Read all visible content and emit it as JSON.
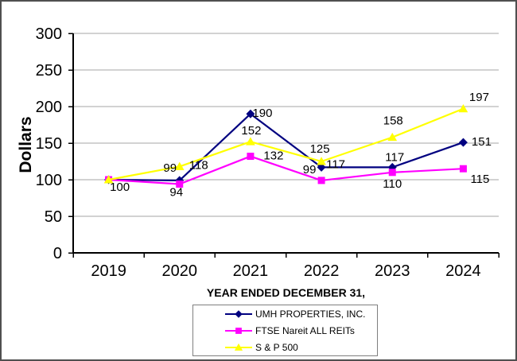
{
  "chart_data": {
    "type": "line",
    "title": "",
    "ylabel": "Dollars",
    "xlabel": "YEAR ENDED DECEMBER 31,",
    "categories": [
      "2019",
      "2020",
      "2021",
      "2022",
      "2023",
      "2024"
    ],
    "yticks": [
      0,
      50,
      100,
      150,
      200,
      250,
      300
    ],
    "ylim": [
      0,
      300
    ],
    "grid": "horizontal",
    "legend_position": "bottom-center",
    "colors": {
      "grid": "#a6a6a6",
      "axis": "#000000",
      "text": "#000000"
    },
    "series": [
      {
        "name": "UMH PROPERTIES, INC.",
        "color": "#000080",
        "marker": "diamond",
        "values": [
          100,
          99,
          190,
          117,
          117,
          151
        ],
        "labels": [
          "100",
          "99",
          "190",
          "117",
          "117",
          "151"
        ],
        "label_offsets": [
          [
            14,
            9
          ],
          [
            -12,
            -16
          ],
          [
            15,
            -1
          ],
          [
            18,
            -4
          ],
          [
            3,
            -13
          ],
          [
            23,
            -1
          ]
        ]
      },
      {
        "name": "FTSE Nareit ALL REITs",
        "color": "#ff00ff",
        "marker": "square",
        "values": [
          100,
          94,
          132,
          99,
          110,
          115
        ],
        "labels": [
          null,
          "94",
          "132",
          "99",
          "110",
          "115"
        ],
        "label_offsets": [
          null,
          [
            -4,
            10
          ],
          [
            29,
            -1
          ],
          [
            -15,
            -14
          ],
          [
            0,
            14
          ],
          [
            21,
            13
          ]
        ]
      },
      {
        "name": "S & P 500",
        "color": "#ffff00",
        "marker": "triangle",
        "values": [
          100,
          118,
          152,
          125,
          158,
          197
        ],
        "labels": [
          null,
          "118",
          "152",
          "125",
          "158",
          "197"
        ],
        "label_offsets": [
          null,
          [
            24,
            -2
          ],
          [
            1,
            -14
          ],
          [
            -2,
            -16
          ],
          [
            1,
            -21
          ],
          [
            20,
            -15
          ]
        ]
      }
    ]
  }
}
